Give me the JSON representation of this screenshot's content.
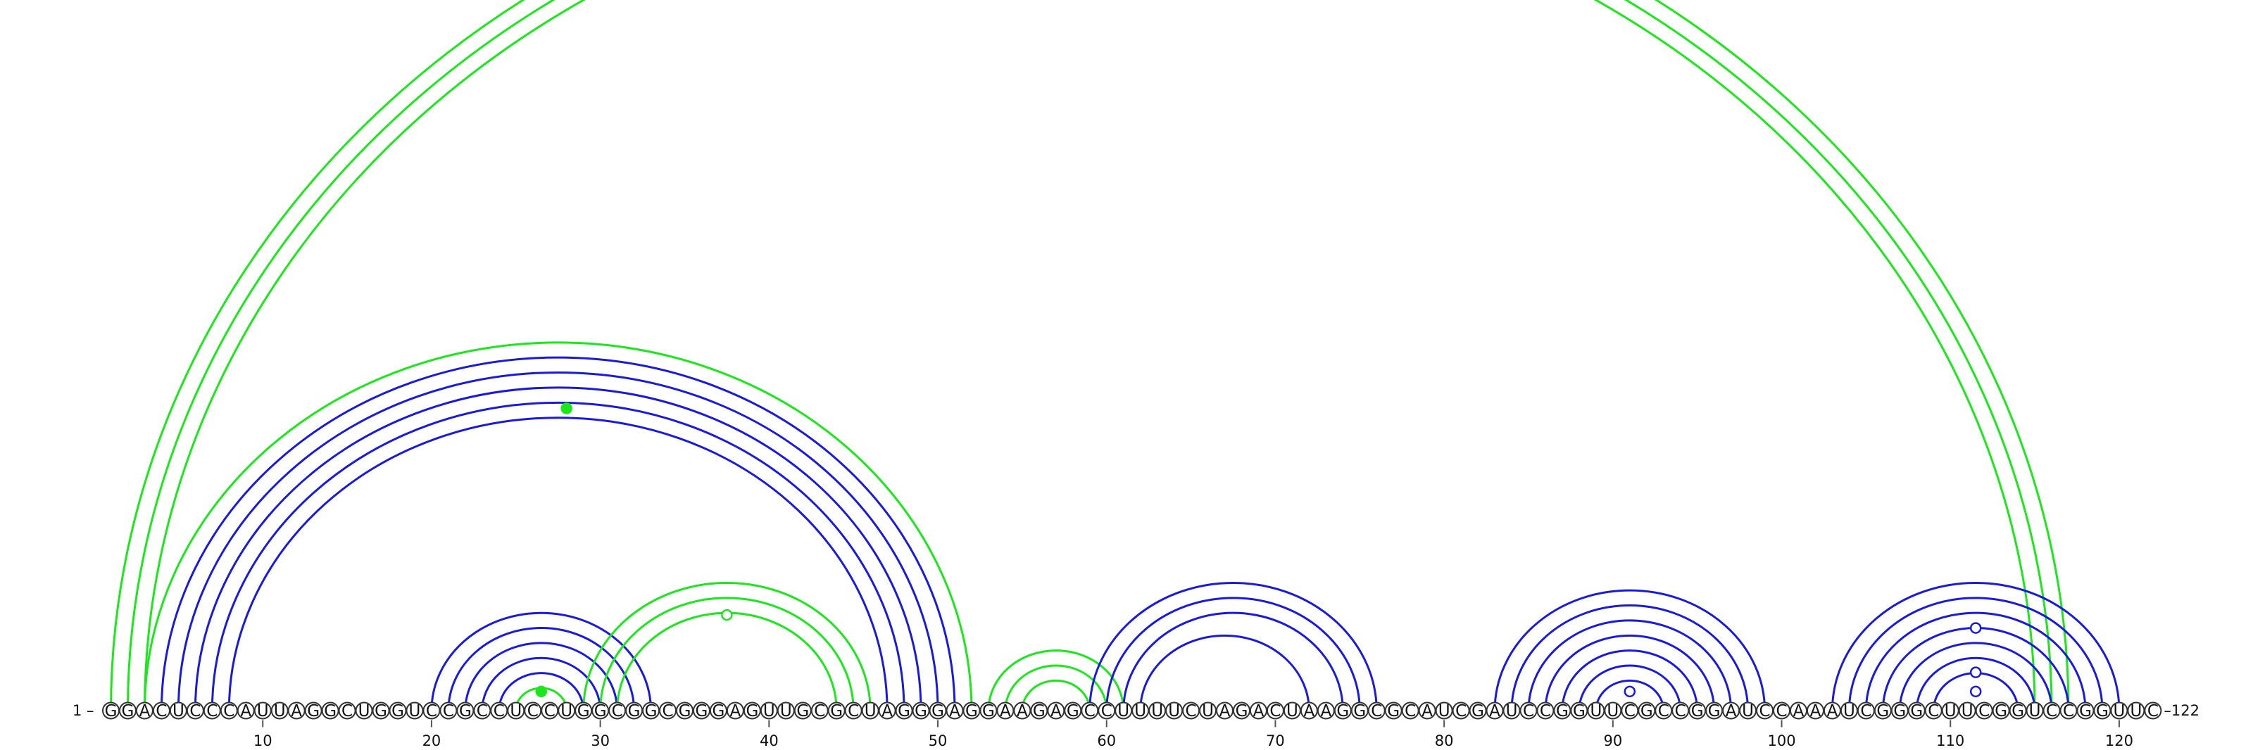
{
  "diagram": {
    "sequence": "GGACUCCCAUUAGGCUGGUCCGCCUCCUGGCGGCGGGAGUUGCGCUAGGGAGGAAGAGCCUUUUCUAGACUAAGGCGCAUCGAUCCGGUUCGCCGGAUCCAAAUCGGGCUUCGGUCCGGUUC",
    "start_label": "1 –",
    "end_label": "–122",
    "ticks": [
      10,
      20,
      30,
      40,
      50,
      60,
      70,
      80,
      90,
      100,
      110,
      120
    ],
    "colors": {
      "blue": "#1a1adc",
      "green": "#1ee61e"
    },
    "arcs": [
      {
        "i": 1,
        "j": 117,
        "color": "green"
      },
      {
        "i": 2,
        "j": 116,
        "color": "green"
      },
      {
        "i": 3,
        "j": 115,
        "color": "green"
      },
      {
        "i": 3,
        "j": 52,
        "color": "green"
      },
      {
        "i": 4,
        "j": 51,
        "color": "blue"
      },
      {
        "i": 5,
        "j": 50,
        "color": "blue"
      },
      {
        "i": 6,
        "j": 49,
        "color": "blue"
      },
      {
        "i": 7,
        "j": 48,
        "color": "blue"
      },
      {
        "i": 8,
        "j": 47,
        "color": "blue"
      },
      {
        "i": 20,
        "j": 33,
        "color": "blue"
      },
      {
        "i": 21,
        "j": 32,
        "color": "blue"
      },
      {
        "i": 22,
        "j": 31,
        "color": "blue"
      },
      {
        "i": 23,
        "j": 30,
        "color": "blue"
      },
      {
        "i": 24,
        "j": 29,
        "color": "blue"
      },
      {
        "i": 25,
        "j": 28,
        "color": "green"
      },
      {
        "i": 29,
        "j": 46,
        "color": "green"
      },
      {
        "i": 30,
        "j": 45,
        "color": "green"
      },
      {
        "i": 31,
        "j": 44,
        "color": "green"
      },
      {
        "i": 53,
        "j": 61,
        "color": "green"
      },
      {
        "i": 54,
        "j": 60,
        "color": "green"
      },
      {
        "i": 55,
        "j": 59,
        "color": "green"
      },
      {
        "i": 59,
        "j": 76,
        "color": "blue"
      },
      {
        "i": 60,
        "j": 75,
        "color": "blue"
      },
      {
        "i": 61,
        "j": 74,
        "color": "blue"
      },
      {
        "i": 62,
        "j": 72,
        "color": "blue"
      },
      {
        "i": 83,
        "j": 99,
        "color": "blue"
      },
      {
        "i": 84,
        "j": 98,
        "color": "blue"
      },
      {
        "i": 85,
        "j": 97,
        "color": "blue"
      },
      {
        "i": 86,
        "j": 96,
        "color": "blue"
      },
      {
        "i": 87,
        "j": 95,
        "color": "blue"
      },
      {
        "i": 88,
        "j": 94,
        "color": "blue"
      },
      {
        "i": 89,
        "j": 93,
        "color": "blue"
      },
      {
        "i": 103,
        "j": 120,
        "color": "blue"
      },
      {
        "i": 104,
        "j": 119,
        "color": "blue"
      },
      {
        "i": 105,
        "j": 118,
        "color": "blue"
      },
      {
        "i": 106,
        "j": 117,
        "color": "blue"
      },
      {
        "i": 107,
        "j": 116,
        "color": "blue"
      },
      {
        "i": 108,
        "j": 115,
        "color": "blue"
      },
      {
        "i": 109,
        "j": 114,
        "color": "blue"
      }
    ],
    "markers": [
      {
        "pos": 28,
        "level": 0.395,
        "color": "green",
        "filled": true
      },
      {
        "pos": 26.5,
        "level": 0.025,
        "color": "green",
        "filled": true
      },
      {
        "pos": 37.5,
        "level": 0.125,
        "color": "green",
        "filled": false
      },
      {
        "pos": 91,
        "level": 0.025,
        "color": "blue",
        "filled": false
      },
      {
        "pos": 111.5,
        "level": 0.108,
        "color": "blue",
        "filled": false
      },
      {
        "pos": 111.5,
        "level": 0.05,
        "color": "blue",
        "filled": false
      },
      {
        "pos": 111.5,
        "level": 0.025,
        "color": "blue",
        "filled": false
      }
    ]
  }
}
